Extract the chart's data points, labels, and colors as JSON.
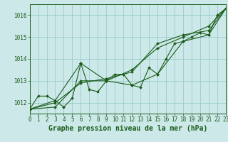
{
  "background_color": "#cce8e8",
  "grid_color": "#99cccc",
  "line_color": "#1a5c1a",
  "series": [
    {
      "x": [
        0,
        1,
        2,
        3,
        4,
        5,
        6,
        7,
        8,
        9,
        10,
        11,
        12,
        13,
        14,
        15,
        16,
        17,
        18,
        19,
        20,
        21,
        22,
        23
      ],
      "y": [
        1011.7,
        1012.3,
        1012.3,
        1012.1,
        1011.8,
        1012.2,
        1013.8,
        1012.6,
        1012.5,
        1013.0,
        1013.3,
        1013.3,
        1012.8,
        1012.7,
        1013.6,
        1013.3,
        1014.0,
        1014.7,
        1014.8,
        1015.0,
        1015.2,
        1015.1,
        1016.0,
        1016.3
      ]
    },
    {
      "x": [
        0,
        3,
        6,
        9,
        12,
        15,
        18,
        21,
        23
      ],
      "y": [
        1011.7,
        1012.1,
        1013.8,
        1013.0,
        1012.8,
        1013.3,
        1014.8,
        1015.1,
        1016.3
      ]
    },
    {
      "x": [
        0,
        3,
        6,
        9,
        12,
        15,
        18,
        21,
        23
      ],
      "y": [
        1011.7,
        1011.8,
        1013.0,
        1013.0,
        1013.5,
        1014.5,
        1015.0,
        1015.5,
        1016.3
      ]
    },
    {
      "x": [
        0,
        3,
        6,
        9,
        12,
        15,
        18,
        21,
        23
      ],
      "y": [
        1011.7,
        1012.0,
        1012.9,
        1013.1,
        1013.4,
        1014.7,
        1015.1,
        1015.3,
        1016.3
      ]
    }
  ],
  "xlim": [
    0,
    23
  ],
  "ylim": [
    1011.5,
    1016.5
  ],
  "yticks": [
    1012,
    1013,
    1014,
    1015,
    1016
  ],
  "xticks": [
    0,
    1,
    2,
    3,
    4,
    5,
    6,
    7,
    8,
    9,
    10,
    11,
    12,
    13,
    14,
    15,
    16,
    17,
    18,
    19,
    20,
    21,
    22,
    23
  ],
  "xlabel": "Graphe pression niveau de la mer (hPa)",
  "tick_fontsize": 5.5,
  "xlabel_fontsize": 7.0,
  "marker_size": 2.0,
  "linewidth": 0.8
}
